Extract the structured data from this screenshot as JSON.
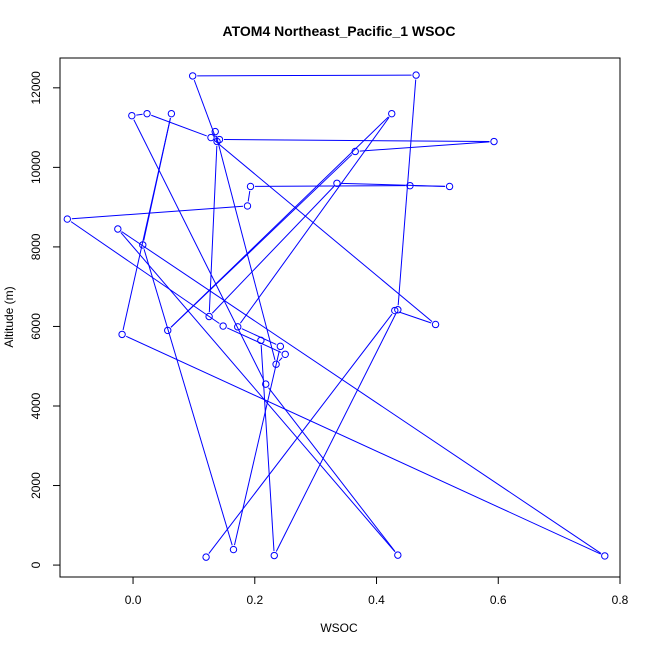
{
  "chart_data": {
    "type": "line",
    "title": "ATOM4 Northeast_Pacific_1 WSOC",
    "xlabel": "WSOC",
    "ylabel": "Altitude (m)",
    "xlim": [
      -0.12,
      0.8
    ],
    "ylim": [
      -300,
      12750
    ],
    "xticks": [
      "0.0",
      "0.2",
      "0.4",
      "0.6",
      "0.8"
    ],
    "xtick_values": [
      0,
      0.2,
      0.4,
      0.6,
      0.8
    ],
    "yticks": [
      "0",
      "2000",
      "4000",
      "6000",
      "8000",
      "10000",
      "12000"
    ],
    "ytick_values": [
      0,
      2000,
      4000,
      6000,
      8000,
      10000,
      12000
    ],
    "grid": false,
    "legend": "none",
    "color": "#0000ff",
    "series": [
      {
        "x": [
          0.12,
          0.43,
          0.497,
          0.128,
          0.023,
          -0.002,
          0.218,
          0.435,
          -0.025,
          0.775,
          -0.018,
          0.063,
          0.016,
          0.165,
          0.242,
          0.172,
          0.425,
          0.057,
          0.365,
          0.593,
          0.142,
          0.135,
          0.235,
          0.25,
          0.148,
          -0.108,
          0.188,
          0.193,
          0.455,
          0.52,
          0.335,
          0.125,
          0.138,
          0.098,
          0.465,
          0.435,
          0.232,
          0.21
        ],
        "y": [
          200,
          6400,
          6050,
          10750,
          11350,
          11300,
          4550,
          250,
          8450,
          230,
          5800,
          11350,
          8050,
          390,
          5500,
          5990,
          11350,
          5900,
          10400,
          10650,
          10700,
          10900,
          5050,
          5300,
          6010,
          8700,
          9030,
          9520,
          9540,
          9520,
          9600,
          6250,
          10650,
          12300,
          12320,
          6420,
          240,
          5650
        ]
      }
    ]
  }
}
